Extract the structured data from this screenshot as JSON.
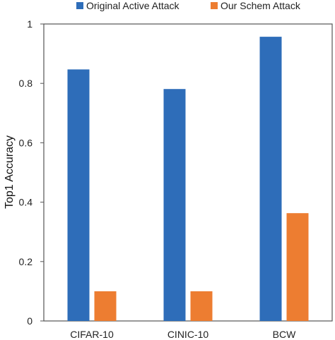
{
  "chart_data": {
    "type": "bar",
    "categories": [
      "CIFAR-10",
      "CINIC-10",
      "BCW"
    ],
    "series": [
      {
        "name": "Original Active Attack",
        "values": [
          0.847,
          0.781,
          0.957
        ],
        "color": "#2E6DB9"
      },
      {
        "name": "Our Schem Attack",
        "values": [
          0.1,
          0.1,
          0.363
        ],
        "color": "#ED7D31"
      }
    ],
    "title": "",
    "xlabel": "",
    "ylabel": "Top1 Accuracy",
    "ylim": [
      0,
      1
    ],
    "yticks": [
      "0",
      "0.2",
      "0.4",
      "0.6",
      "0.8",
      "1"
    ],
    "grid": false,
    "legend_position": "top"
  }
}
